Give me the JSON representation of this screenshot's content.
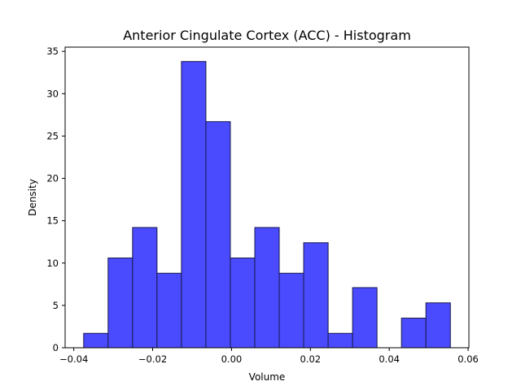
{
  "chart_data": {
    "type": "bar",
    "title": "Anterior Cingulate Cortex (ACC) - Histogram",
    "xlabel": "Volume",
    "ylabel": "Density",
    "bins": [
      {
        "x0": -0.0375,
        "x1": -0.0313,
        "value": 1.7
      },
      {
        "x0": -0.0313,
        "x1": -0.0251,
        "value": 10.6
      },
      {
        "x0": -0.0251,
        "x1": -0.0189,
        "value": 14.2
      },
      {
        "x0": -0.0189,
        "x1": -0.0127,
        "value": 8.8
      },
      {
        "x0": -0.0127,
        "x1": -0.0065,
        "value": 33.8
      },
      {
        "x0": -0.0065,
        "x1": -0.0003,
        "value": 26.7
      },
      {
        "x0": -0.0003,
        "x1": 0.0059,
        "value": 10.6
      },
      {
        "x0": 0.0059,
        "x1": 0.0121,
        "value": 14.2
      },
      {
        "x0": 0.0121,
        "x1": 0.0183,
        "value": 8.8
      },
      {
        "x0": 0.0183,
        "x1": 0.0245,
        "value": 12.4
      },
      {
        "x0": 0.0245,
        "x1": 0.0307,
        "value": 1.7
      },
      {
        "x0": 0.0307,
        "x1": 0.0369,
        "value": 7.1
      },
      {
        "x0": 0.0369,
        "x1": 0.0431,
        "value": 0
      },
      {
        "x0": 0.0431,
        "x1": 0.0493,
        "value": 3.5
      },
      {
        "x0": 0.0493,
        "x1": 0.0555,
        "value": 5.3
      }
    ],
    "xlim": [
      -0.0422,
      0.0602
    ],
    "ylim": [
      0,
      35.5
    ],
    "xticks": [
      {
        "value": -0.04,
        "label": "−0.04"
      },
      {
        "value": -0.02,
        "label": "−0.02"
      },
      {
        "value": 0.0,
        "label": "0.00"
      },
      {
        "value": 0.02,
        "label": "0.02"
      },
      {
        "value": 0.04,
        "label": "0.04"
      },
      {
        "value": 0.06,
        "label": "0.06"
      }
    ],
    "yticks": [
      {
        "value": 0,
        "label": "0"
      },
      {
        "value": 5,
        "label": "5"
      },
      {
        "value": 10,
        "label": "10"
      },
      {
        "value": 15,
        "label": "15"
      },
      {
        "value": 20,
        "label": "20"
      },
      {
        "value": 25,
        "label": "25"
      },
      {
        "value": 30,
        "label": "30"
      },
      {
        "value": 35,
        "label": "35"
      }
    ],
    "grid": false,
    "bar_color": "#4a4aff",
    "bar_edge_color": "#1a1a4a"
  }
}
